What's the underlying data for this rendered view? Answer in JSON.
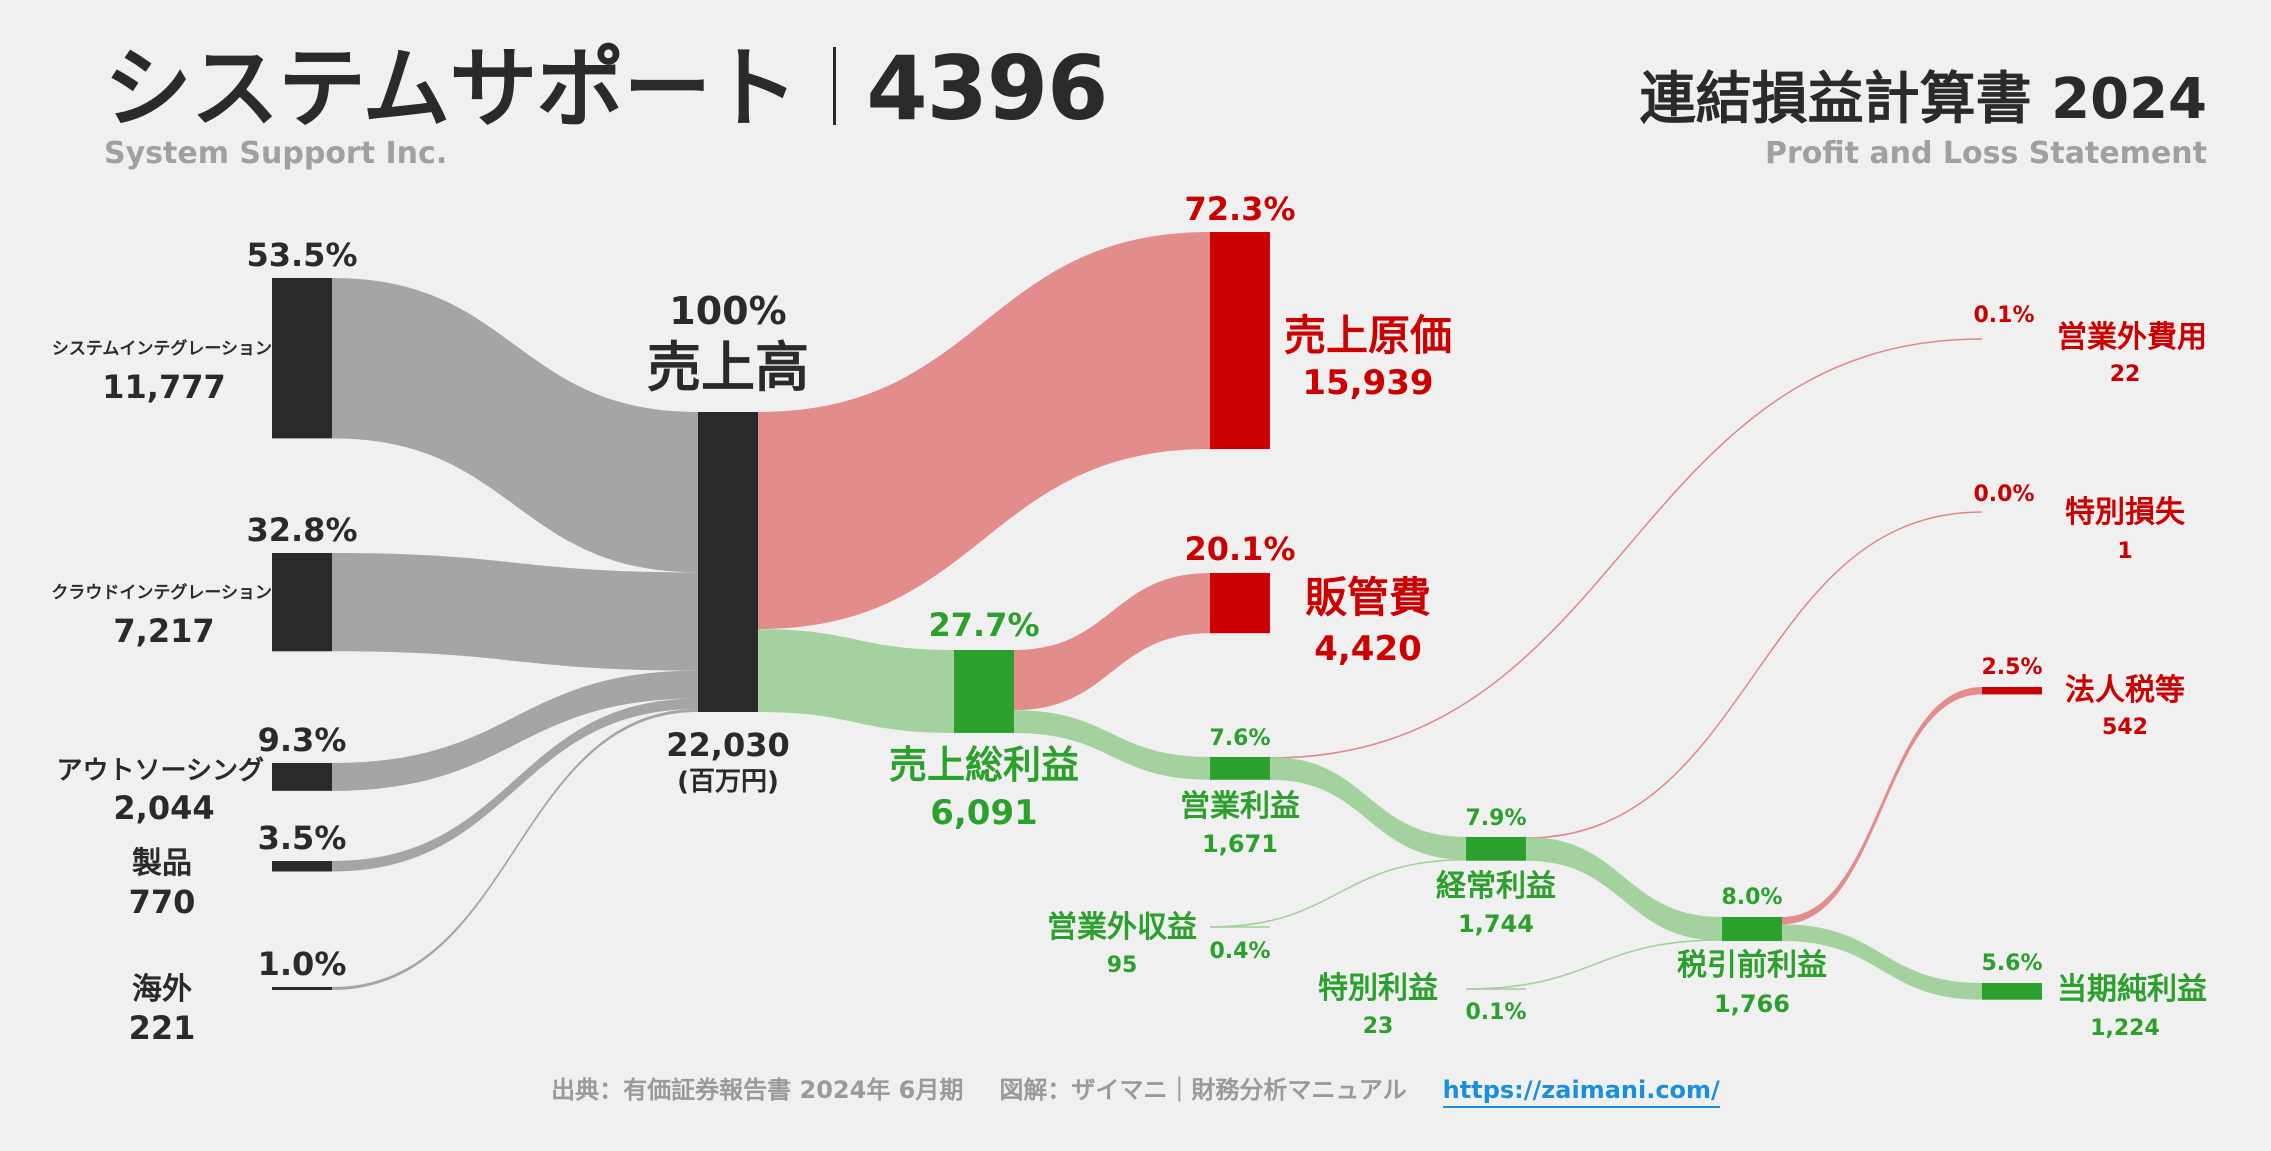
{
  "header": {
    "company_name_ja": "システムサポート",
    "ticker": "4396",
    "company_name_en": "System Support Inc.",
    "statement_title": "連結損益計算書 2024",
    "statement_title_en": "Profit and Loss Statement"
  },
  "footer": {
    "source": "出典：有価証券報告書 2024年 6月期",
    "credit": "図解：ザイマニ｜財務分析マニュアル",
    "url": "https://zaimani.com/"
  },
  "colors": {
    "dark": "#2a2a2a",
    "gray_flow": "#a0a0a0",
    "red": "#cc0000",
    "red_flow": "#e08686",
    "green": "#2ca02c",
    "green_flow": "#9fd09a"
  },
  "chart_data": {
    "type": "sankey",
    "unit": "(百万円)",
    "revenue": {
      "label": "売上高",
      "pct": "100%",
      "value": "22,030"
    },
    "segments": [
      {
        "name": "システムインテグレーション",
        "value": "11,777",
        "pct": "53.5%"
      },
      {
        "name": "クラウドインテグレーション",
        "value": "7,217",
        "pct": "32.8%"
      },
      {
        "name": "アウトソーシング",
        "value": "2,044",
        "pct": "9.3%"
      },
      {
        "name": "製品",
        "value": "770",
        "pct": "3.5%"
      },
      {
        "name": "海外",
        "value": "221",
        "pct": "1.0%"
      }
    ],
    "cost_of_sales": {
      "label": "売上原価",
      "value": "15,939",
      "pct": "72.3%"
    },
    "gross_profit": {
      "label": "売上総利益",
      "value": "6,091",
      "pct": "27.7%"
    },
    "sga": {
      "label": "販管費",
      "value": "4,420",
      "pct": "20.1%"
    },
    "operating_profit": {
      "label": "営業利益",
      "value": "1,671",
      "pct": "7.6%"
    },
    "non_operating_income": {
      "label": "営業外収益",
      "value": "95",
      "pct": "0.4%"
    },
    "non_operating_expenses": {
      "label": "営業外費用",
      "value": "22",
      "pct": "0.1%"
    },
    "ordinary_profit": {
      "label": "経常利益",
      "value": "1,744",
      "pct": "7.9%"
    },
    "extraordinary_income": {
      "label": "特別利益",
      "value": "23",
      "pct": "0.1%"
    },
    "extraordinary_loss": {
      "label": "特別損失",
      "value": "1",
      "pct": "0.0%"
    },
    "pretax_profit": {
      "label": "税引前利益",
      "value": "1,766",
      "pct": "8.0%"
    },
    "income_taxes": {
      "label": "法人税等",
      "value": "542",
      "pct": "2.5%"
    },
    "net_income": {
      "label": "当期純利益",
      "value": "1,224",
      "pct": "5.6%"
    }
  }
}
